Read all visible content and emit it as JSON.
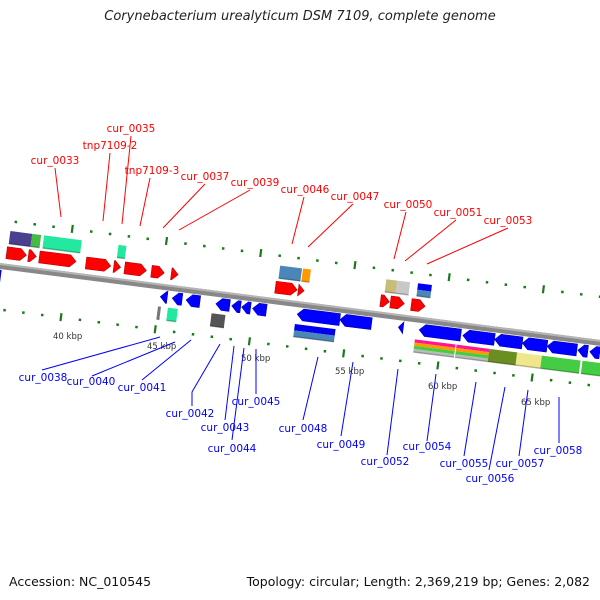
{
  "title": "Corynebacterium urealyticum DSM 7109, complete genome",
  "footer": {
    "accession": "Accession: NC_010545",
    "summary": "Topology: circular; Length: 2,369,219 bp; Genes: 2,082"
  },
  "colors": {
    "forward_label": "#ff0000",
    "reverse_label": "#0000ff",
    "forward_gene": "#ff0000",
    "reverse_gene": "#0000ff",
    "backbone": "#888888",
    "ticks": "#1a7a1a"
  },
  "forward_labels": [
    "cur_0033",
    "tnp7109-2",
    "cur_0035",
    "tnp7109-3",
    "cur_0037",
    "cur_0039",
    "cur_0046",
    "cur_0047",
    "cur_0050",
    "cur_0051",
    "cur_0053"
  ],
  "reverse_labels": [
    "cur_0038",
    "cur_0040",
    "cur_0041",
    "cur_0042",
    "cur_0043",
    "cur_0044",
    "cur_0045",
    "cur_0048",
    "cur_0049",
    "cur_0052",
    "cur_0054",
    "cur_0055",
    "cur_0056",
    "cur_0057",
    "cur_0058"
  ],
  "scale_labels": [
    "40 kbp",
    "45 kbp",
    "50 kbp",
    "55 kbp",
    "60 kbp",
    "65 kbp"
  ]
}
